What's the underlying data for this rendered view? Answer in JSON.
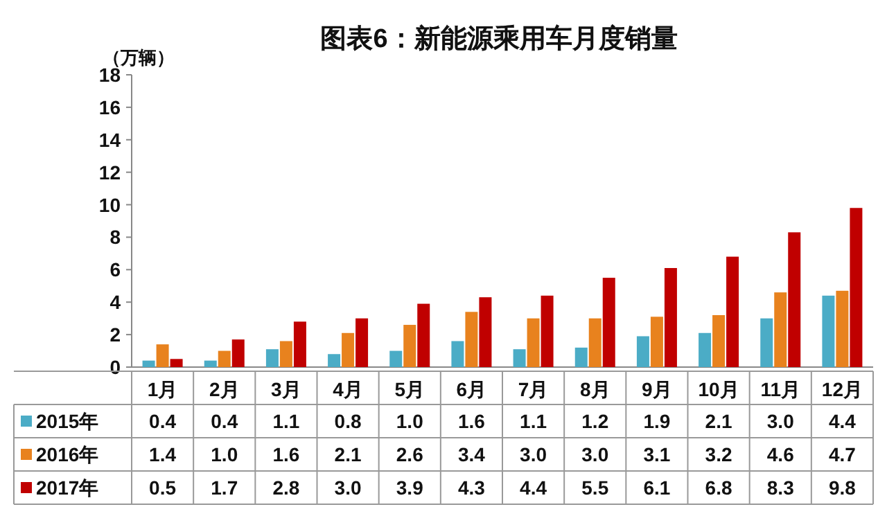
{
  "chart_data": {
    "type": "bar",
    "title": "图表6：新能源乘用车月度销量",
    "ylabel": "（万辆）",
    "categories": [
      "1月",
      "2月",
      "3月",
      "4月",
      "5月",
      "6月",
      "7月",
      "8月",
      "9月",
      "10月",
      "11月",
      "12月"
    ],
    "series": [
      {
        "name": "2015年",
        "color": "#4bacc6",
        "values": [
          0.4,
          0.4,
          1.1,
          0.8,
          1.0,
          1.6,
          1.1,
          1.2,
          1.9,
          2.1,
          3.0,
          4.4
        ],
        "value_labels": [
          "0.4",
          "0.4",
          "1.1",
          "0.8",
          "1.0",
          "1.6",
          "1.1",
          "1.2",
          "1.9",
          "2.1",
          "3.0",
          "4.4"
        ]
      },
      {
        "name": "2016年",
        "color": "#e8821e",
        "values": [
          1.4,
          1.0,
          1.6,
          2.1,
          2.6,
          3.4,
          3.0,
          3.0,
          3.1,
          3.2,
          4.6,
          4.7
        ],
        "value_labels": [
          "1.4",
          "1.0",
          "1.6",
          "2.1",
          "2.6",
          "3.4",
          "3.0",
          "3.0",
          "3.1",
          "3.2",
          "4.6",
          "4.7"
        ]
      },
      {
        "name": "2017年",
        "color": "#c00000",
        "values": [
          0.5,
          1.7,
          2.8,
          3.0,
          3.9,
          4.3,
          4.4,
          5.5,
          6.1,
          6.8,
          8.3,
          9.8
        ],
        "value_labels": [
          "0.5",
          "1.7",
          "2.8",
          "3.0",
          "3.9",
          "4.3",
          "4.4",
          "5.5",
          "6.1",
          "6.8",
          "8.3",
          "9.8"
        ]
      }
    ],
    "ylim": [
      0,
      18
    ],
    "yticks": [
      0,
      2,
      4,
      6,
      8,
      10,
      12,
      14,
      16,
      18
    ],
    "legend": "bottom left"
  }
}
